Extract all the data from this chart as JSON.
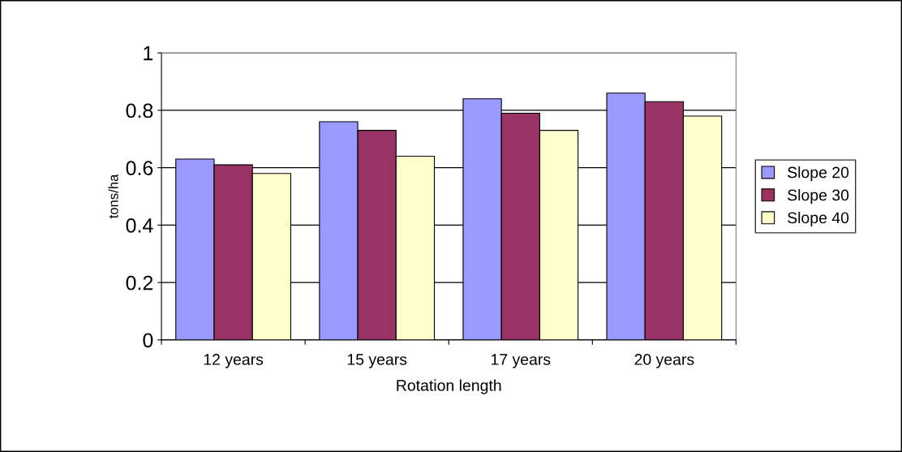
{
  "chart_data": {
    "type": "bar",
    "xlabel": "Rotation length",
    "ylabel": "tons/ha",
    "categories": [
      "12 years",
      "15 years",
      "17 years",
      "20 years"
    ],
    "series": [
      {
        "name": "Slope 20",
        "color": "#9999ff",
        "values": [
          0.63,
          0.76,
          0.84,
          0.86
        ]
      },
      {
        "name": "Slope 30",
        "color": "#993366",
        "values": [
          0.61,
          0.73,
          0.79,
          0.83
        ]
      },
      {
        "name": "Slope 40",
        "color": "#ffffcc",
        "values": [
          0.58,
          0.64,
          0.73,
          0.78
        ]
      }
    ],
    "ylim": [
      0,
      1
    ],
    "yticks": [
      0,
      0.2,
      0.4,
      0.6,
      0.8,
      1
    ],
    "grid": "y",
    "legend": "right"
  }
}
